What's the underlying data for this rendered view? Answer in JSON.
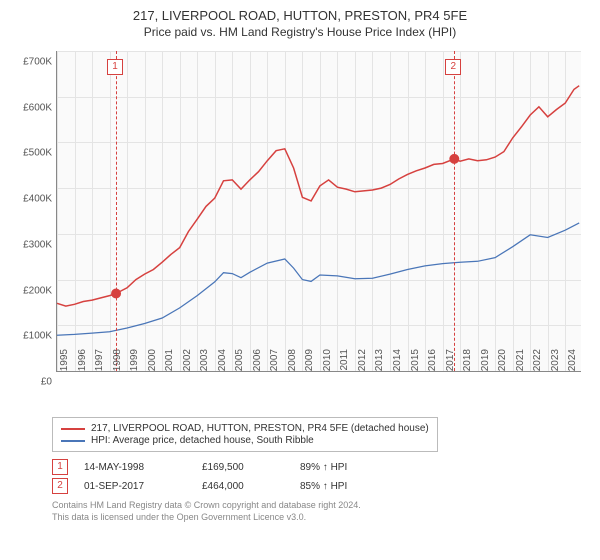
{
  "title": "217, LIVERPOOL ROAD, HUTTON, PRESTON, PR4 5FE",
  "subtitle": "Price paid vs. HM Land Registry's House Price Index (HPI)",
  "chart": {
    "type": "line",
    "background_color": "#fafafa",
    "grid_color": "#e4e4e4",
    "axis_color": "#888888",
    "x_years": [
      1995,
      1996,
      1997,
      1998,
      1999,
      2000,
      2001,
      2002,
      2003,
      2004,
      2005,
      2006,
      2007,
      2008,
      2009,
      2010,
      2011,
      2012,
      2013,
      2014,
      2015,
      2016,
      2017,
      2018,
      2019,
      2020,
      2021,
      2022,
      2023,
      2024
    ],
    "xlim": [
      1995,
      2024.9
    ],
    "ylim": [
      0,
      700000
    ],
    "ytick_step": 100000,
    "yticks": [
      "£0",
      "£100K",
      "£200K",
      "£300K",
      "£400K",
      "£500K",
      "£600K",
      "£700K"
    ],
    "series": {
      "main": {
        "label": "217, LIVERPOOL ROAD, HUTTON, PRESTON, PR4 5FE (detached house)",
        "color": "#d6413f",
        "points": [
          [
            1995.0,
            148000
          ],
          [
            1995.5,
            142000
          ],
          [
            1996.0,
            146000
          ],
          [
            1996.5,
            152000
          ],
          [
            1997.0,
            155000
          ],
          [
            1997.5,
            160000
          ],
          [
            1998.0,
            165000
          ],
          [
            1998.37,
            169500
          ],
          [
            1998.7,
            176000
          ],
          [
            1999.0,
            182000
          ],
          [
            1999.5,
            200000
          ],
          [
            2000.0,
            212000
          ],
          [
            2000.5,
            222000
          ],
          [
            2001.0,
            238000
          ],
          [
            2001.5,
            255000
          ],
          [
            2002.0,
            270000
          ],
          [
            2002.5,
            305000
          ],
          [
            2003.0,
            332000
          ],
          [
            2003.5,
            360000
          ],
          [
            2004.0,
            378000
          ],
          [
            2004.5,
            416000
          ],
          [
            2005.0,
            418000
          ],
          [
            2005.5,
            398000
          ],
          [
            2006.0,
            418000
          ],
          [
            2006.5,
            436000
          ],
          [
            2007.0,
            460000
          ],
          [
            2007.5,
            482000
          ],
          [
            2008.0,
            486000
          ],
          [
            2008.5,
            444000
          ],
          [
            2009.0,
            380000
          ],
          [
            2009.5,
            372000
          ],
          [
            2010.0,
            405000
          ],
          [
            2010.5,
            418000
          ],
          [
            2011.0,
            402000
          ],
          [
            2011.5,
            398000
          ],
          [
            2012.0,
            392000
          ],
          [
            2012.5,
            394000
          ],
          [
            2013.0,
            396000
          ],
          [
            2013.5,
            400000
          ],
          [
            2014.0,
            408000
          ],
          [
            2014.5,
            420000
          ],
          [
            2015.0,
            430000
          ],
          [
            2015.5,
            438000
          ],
          [
            2016.0,
            444000
          ],
          [
            2016.5,
            452000
          ],
          [
            2017.0,
            454000
          ],
          [
            2017.67,
            464000
          ],
          [
            2018.0,
            459000
          ],
          [
            2018.5,
            464000
          ],
          [
            2019.0,
            460000
          ],
          [
            2019.5,
            462000
          ],
          [
            2020.0,
            468000
          ],
          [
            2020.5,
            480000
          ],
          [
            2021.0,
            510000
          ],
          [
            2021.5,
            534000
          ],
          [
            2022.0,
            560000
          ],
          [
            2022.5,
            578000
          ],
          [
            2023.0,
            556000
          ],
          [
            2023.5,
            572000
          ],
          [
            2024.0,
            586000
          ],
          [
            2024.5,
            616000
          ],
          [
            2024.8,
            624000
          ]
        ]
      },
      "hpi": {
        "label": "HPI: Average price, detached house, South Ribble",
        "color": "#4a76b8",
        "points": [
          [
            1995.0,
            78000
          ],
          [
            1996.0,
            80000
          ],
          [
            1997.0,
            83000
          ],
          [
            1998.0,
            86000
          ],
          [
            1999.0,
            94000
          ],
          [
            2000.0,
            104000
          ],
          [
            2001.0,
            116000
          ],
          [
            2002.0,
            138000
          ],
          [
            2003.0,
            165000
          ],
          [
            2004.0,
            195000
          ],
          [
            2004.5,
            215000
          ],
          [
            2005.0,
            213000
          ],
          [
            2005.5,
            204000
          ],
          [
            2006.0,
            216000
          ],
          [
            2007.0,
            236000
          ],
          [
            2008.0,
            245000
          ],
          [
            2008.5,
            225000
          ],
          [
            2009.0,
            200000
          ],
          [
            2009.5,
            196000
          ],
          [
            2010.0,
            210000
          ],
          [
            2011.0,
            208000
          ],
          [
            2012.0,
            202000
          ],
          [
            2013.0,
            203000
          ],
          [
            2014.0,
            212000
          ],
          [
            2015.0,
            222000
          ],
          [
            2016.0,
            230000
          ],
          [
            2017.0,
            235000
          ],
          [
            2018.0,
            238000
          ],
          [
            2019.0,
            240000
          ],
          [
            2020.0,
            248000
          ],
          [
            2021.0,
            272000
          ],
          [
            2022.0,
            298000
          ],
          [
            2023.0,
            292000
          ],
          [
            2024.0,
            308000
          ],
          [
            2024.8,
            324000
          ]
        ]
      }
    },
    "markers": [
      {
        "n": "1",
        "x": 1998.37,
        "y": 169500,
        "color": "#d6413f"
      },
      {
        "n": "2",
        "x": 2017.67,
        "y": 464000,
        "color": "#d6413f"
      }
    ]
  },
  "legend": {
    "items": [
      {
        "color": "#d6413f",
        "label": "217, LIVERPOOL ROAD, HUTTON, PRESTON, PR4 5FE (detached house)"
      },
      {
        "color": "#4a76b8",
        "label": "HPI: Average price, detached house, South Ribble"
      }
    ]
  },
  "data_rows": [
    {
      "n": "1",
      "color": "#d6413f",
      "date": "14-MAY-1998",
      "price": "£169,500",
      "vs": "89% ↑ HPI"
    },
    {
      "n": "2",
      "color": "#d6413f",
      "date": "01-SEP-2017",
      "price": "£464,000",
      "vs": "85% ↑ HPI"
    }
  ],
  "footer": {
    "line1": "Contains HM Land Registry data © Crown copyright and database right 2024.",
    "line2": "This data is licensed under the Open Government Licence v3.0."
  }
}
